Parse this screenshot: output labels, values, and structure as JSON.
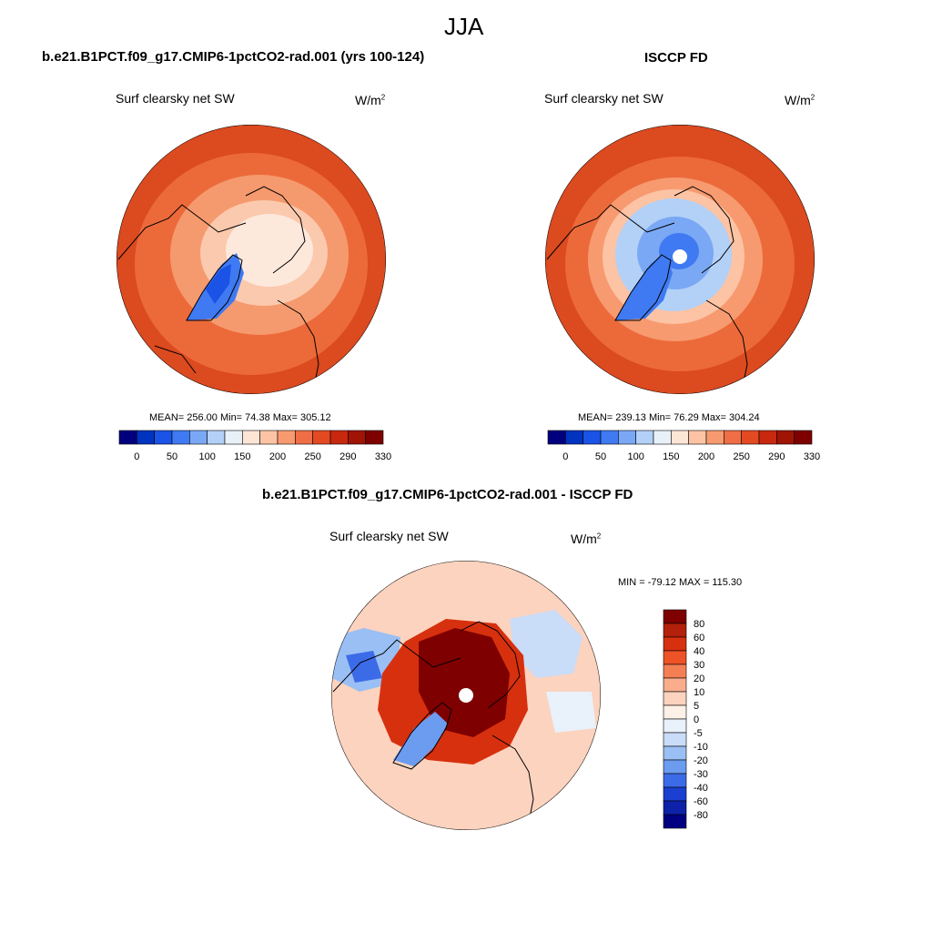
{
  "season": "JJA",
  "panels": {
    "model": {
      "title": "b.e21.B1PCT.f09_g17.CMIP6-1pctCO2-rad.001 (yrs 100-124)",
      "variable": "Surf clearsky net SW",
      "units_base": "W/m",
      "units_exp": "2",
      "stats": "MEAN= 256.00  Min=  74.38  Max= 305.12"
    },
    "obs": {
      "title": "ISCCP FD",
      "variable": "Surf clearsky net SW",
      "units_base": "W/m",
      "units_exp": "2",
      "stats": "MEAN= 239.13  Min=  76.29  Max= 304.24"
    },
    "diff": {
      "title": "b.e21.B1PCT.f09_g17.CMIP6-1pctCO2-rad.001 - ISCCP FD",
      "variable": "Surf clearsky net SW",
      "units_base": "W/m",
      "units_exp": "2",
      "stats": "MIN = -79.12 MAX = 115.30"
    }
  },
  "colorbars": {
    "abs_labels": [
      "0",
      "50",
      "100",
      "150",
      "200",
      "250",
      "290",
      "330"
    ],
    "abs_colors": [
      "#00007f",
      "#0033bf",
      "#1a53e6",
      "#3f7af2",
      "#7aa8f5",
      "#b3d0f7",
      "#e8f0f8",
      "#fde5d6",
      "#fcc3a4",
      "#f79a70",
      "#ef6e45",
      "#e34a21",
      "#c8280e",
      "#a01405",
      "#7f0000"
    ],
    "diff_labels": [
      "80",
      "60",
      "40",
      "30",
      "20",
      "10",
      "5",
      "0",
      "-5",
      "-10",
      "-20",
      "-30",
      "-40",
      "-60",
      "-80"
    ],
    "diff_colors": [
      "#7f0000",
      "#b3200b",
      "#d7300e",
      "#ee5227",
      "#f57f55",
      "#f9ad8c",
      "#fcd3bf",
      "#fdf0e6",
      "#e9f1fb",
      "#c9dcf8",
      "#9abff4",
      "#6b9cf0",
      "#3c6be8",
      "#1b3fd0",
      "#0d22a8",
      "#000080"
    ]
  },
  "chart_data": [
    {
      "type": "heatmap",
      "projection": "north-polar-stereographic",
      "title": "b.e21.B1PCT.f09_g17.CMIP6-1pctCO2-rad.001 (yrs 100-124)",
      "variable": "Surf clearsky net SW",
      "units": "W/m2",
      "mean": 256.0,
      "min": 74.38,
      "max": 305.12,
      "levels": [
        0,
        50,
        100,
        150,
        200,
        250,
        290,
        330
      ]
    },
    {
      "type": "heatmap",
      "projection": "north-polar-stereographic",
      "title": "ISCCP FD",
      "variable": "Surf clearsky net SW",
      "units": "W/m2",
      "mean": 239.13,
      "min": 76.29,
      "max": 304.24,
      "levels": [
        0,
        50,
        100,
        150,
        200,
        250,
        290,
        330
      ]
    },
    {
      "type": "heatmap",
      "projection": "north-polar-stereographic",
      "title": "b.e21.B1PCT.f09_g17.CMIP6-1pctCO2-rad.001 - ISCCP FD",
      "variable": "Surf clearsky net SW",
      "units": "W/m2",
      "min": -79.12,
      "max": 115.3,
      "levels": [
        -80,
        -60,
        -40,
        -30,
        -20,
        -10,
        -5,
        0,
        5,
        10,
        20,
        30,
        40,
        60,
        80
      ]
    }
  ]
}
